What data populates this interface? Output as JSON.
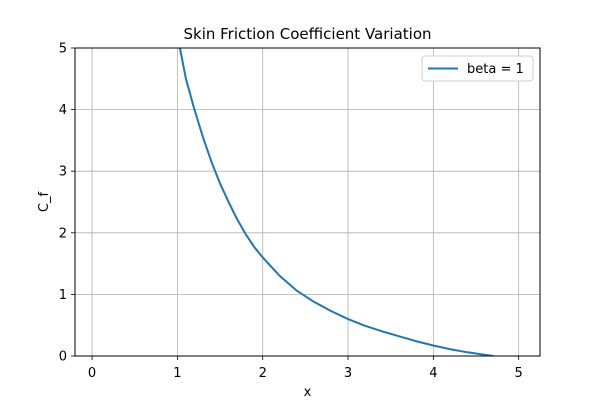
{
  "chart_data": {
    "type": "line",
    "title": "Skin Friction Coefficient Variation",
    "xlabel": "x",
    "ylabel": "C_f",
    "xlim": [
      -0.2,
      5.25
    ],
    "ylim": [
      0,
      5
    ],
    "xticks": [
      "0",
      "1",
      "2",
      "3",
      "4",
      "5"
    ],
    "yticks": [
      "0",
      "1",
      "2",
      "3",
      "4",
      "5"
    ],
    "grid": true,
    "legend_position": "top-right",
    "series": [
      {
        "name": "beta = 1",
        "color": "#1f77b4",
        "x": [
          1.03,
          1.1,
          1.2,
          1.3,
          1.4,
          1.5,
          1.6,
          1.7,
          1.8,
          1.9,
          2.0,
          2.2,
          2.4,
          2.6,
          2.8,
          3.0,
          3.2,
          3.4,
          3.6,
          3.8,
          4.0,
          4.2,
          4.4,
          4.6,
          4.7
        ],
        "y": [
          5.0,
          4.5,
          4.0,
          3.55,
          3.15,
          2.8,
          2.5,
          2.22,
          1.98,
          1.77,
          1.6,
          1.3,
          1.06,
          0.88,
          0.73,
          0.6,
          0.49,
          0.4,
          0.32,
          0.24,
          0.17,
          0.11,
          0.06,
          0.02,
          0.0
        ]
      }
    ]
  }
}
